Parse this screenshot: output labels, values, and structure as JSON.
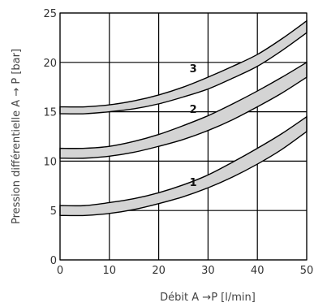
{
  "chart_data": {
    "type": "area",
    "xlabel": "Débit A →P [l/min]",
    "ylabel": "Pression différentielle A → P [bar]",
    "xlim": [
      0,
      50
    ],
    "ylim": [
      0,
      25
    ],
    "xticks": [
      "0",
      "10",
      "20",
      "30",
      "40",
      "50"
    ],
    "yticks": [
      "0",
      "5",
      "10",
      "15",
      "20",
      "25"
    ],
    "grid": true,
    "series": [
      {
        "name": "1",
        "x": [
          0,
          5,
          10,
          15,
          20,
          25,
          30,
          35,
          40,
          45,
          50
        ],
        "upper": [
          5.5,
          5.5,
          5.8,
          6.2,
          6.8,
          7.6,
          8.6,
          9.9,
          11.3,
          12.8,
          14.5
        ],
        "lower": [
          4.5,
          4.5,
          4.7,
          5.1,
          5.7,
          6.4,
          7.3,
          8.4,
          9.7,
          11.2,
          13.0
        ]
      },
      {
        "name": "2",
        "x": [
          0,
          5,
          10,
          15,
          20,
          25,
          30,
          35,
          40,
          45,
          50
        ],
        "upper": [
          11.3,
          11.3,
          11.5,
          12.0,
          12.7,
          13.6,
          14.6,
          15.8,
          17.1,
          18.5,
          20.0
        ],
        "lower": [
          10.3,
          10.3,
          10.5,
          10.9,
          11.5,
          12.2,
          13.1,
          14.2,
          15.5,
          16.9,
          18.5
        ]
      },
      {
        "name": "3",
        "x": [
          0,
          5,
          10,
          15,
          20,
          25,
          30,
          35,
          40,
          45,
          50
        ],
        "upper": [
          15.5,
          15.5,
          15.7,
          16.1,
          16.7,
          17.5,
          18.5,
          19.6,
          20.8,
          22.4,
          24.2
        ],
        "lower": [
          14.8,
          14.8,
          15.0,
          15.3,
          15.8,
          16.5,
          17.3,
          18.4,
          19.6,
          21.2,
          23.0
        ]
      }
    ],
    "labels": [
      {
        "text": "1",
        "x": 27,
        "y": 7.9
      },
      {
        "text": "2",
        "x": 27,
        "y": 15.3
      },
      {
        "text": "3",
        "x": 27,
        "y": 19.4
      }
    ]
  }
}
